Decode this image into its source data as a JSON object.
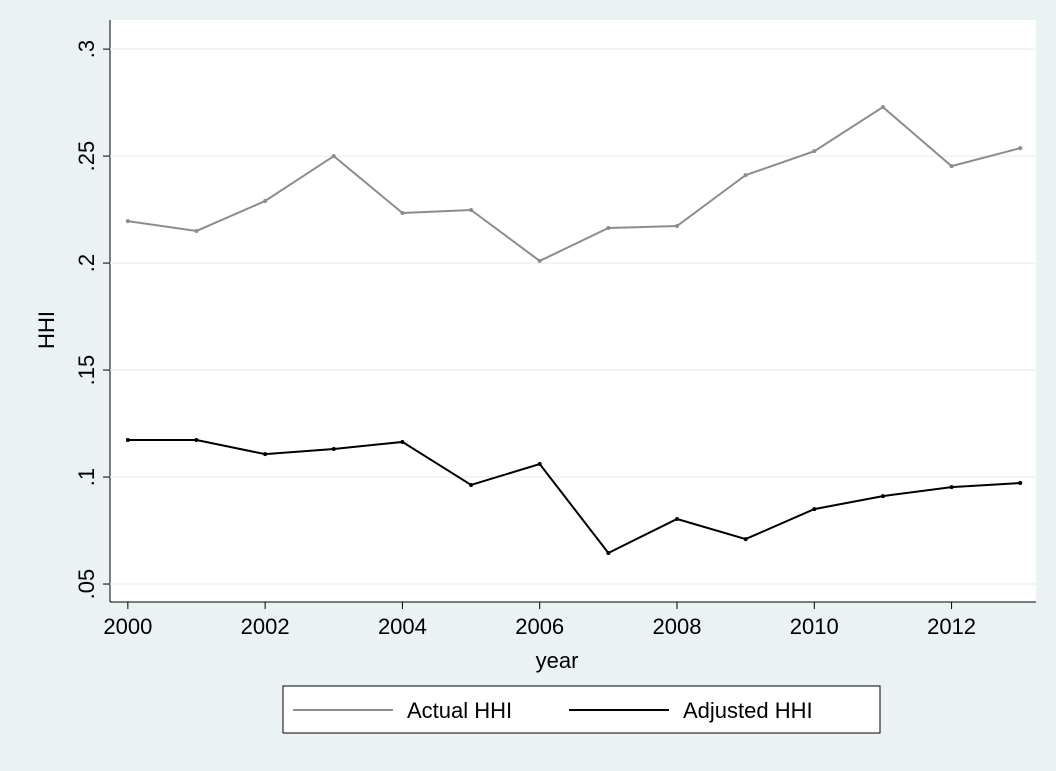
{
  "chart_data": {
    "type": "line",
    "x": [
      2000,
      2001,
      2002,
      2003,
      2004,
      2005,
      2006,
      2007,
      2008,
      2009,
      2010,
      2011,
      2012,
      2013
    ],
    "series": [
      {
        "name": "Actual HHI",
        "color": "#8c8c8c",
        "values": [
          0.2196,
          0.215,
          0.229,
          0.25,
          0.2234,
          0.2248,
          0.201,
          0.2164,
          0.2173,
          0.2411,
          0.2523,
          0.2729,
          0.2453,
          0.2537
        ]
      },
      {
        "name": "Adjusted HHI",
        "color": "#000000",
        "values": [
          0.1173,
          0.1173,
          0.1107,
          0.1131,
          0.1164,
          0.0963,
          0.1061,
          0.0645,
          0.0804,
          0.071,
          0.085,
          0.0911,
          0.0953,
          0.0972
        ]
      }
    ],
    "xlabel": "year",
    "ylabel": "HHI",
    "xlim": [
      1999.74,
      2013.23
    ],
    "xticks": [
      2000,
      2002,
      2004,
      2006,
      2008,
      2010,
      2012
    ],
    "ylim": [
      0.0416,
      0.3136
    ],
    "yticks": [
      {
        "value": 0.05,
        "label": ".05"
      },
      {
        "value": 0.1,
        "label": ".1"
      },
      {
        "value": 0.15,
        "label": ".15"
      },
      {
        "value": 0.2,
        "label": ".2"
      },
      {
        "value": 0.25,
        "label": ".25"
      },
      {
        "value": 0.3,
        "label": ".3"
      }
    ],
    "grid": true,
    "legend": "bottom"
  }
}
